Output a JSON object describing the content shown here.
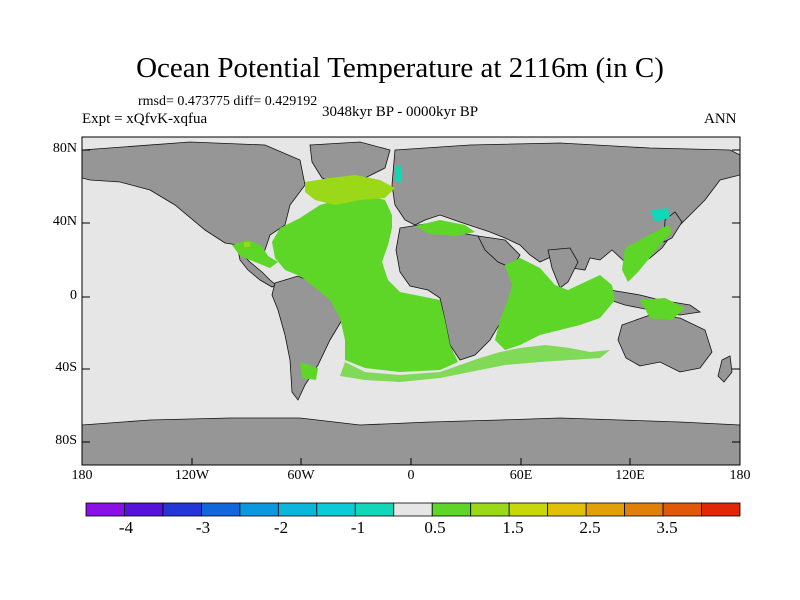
{
  "title": "Ocean Potential Temperature at 2116m (in C)",
  "stats": "rmsd= 0.473775 diff= 0.429192",
  "experiment": "Expt = xQfvK-xqfua",
  "period": "3048kyr BP - 0000kyr BP",
  "season": "ANN",
  "lat_labels": [
    "80N",
    "40N",
    "0",
    "40S",
    "80S"
  ],
  "lon_labels": [
    "180",
    "120W",
    "60W",
    "0",
    "60E",
    "120E",
    "180"
  ],
  "colorbar": {
    "colors": [
      "#8a10e6",
      "#5514d8",
      "#2436d6",
      "#1266dc",
      "#0c98e0",
      "#0ab6dc",
      "#0ccad8",
      "#12d6b8",
      "#e6e6e6",
      "#5ed628",
      "#9ad818",
      "#c8d60c",
      "#e0c008",
      "#e2a008",
      "#e08008",
      "#e05808",
      "#e02808"
    ],
    "labels": [
      "-4",
      "-3",
      "-2",
      "-1",
      "0.5",
      "1.5",
      "2.5",
      "3.5"
    ]
  },
  "colors": {
    "land": "#969696",
    "ocean": "#e6e6e6",
    "anomaly_green": "#5ed628",
    "anomaly_yellowgreen": "#9ad818",
    "anomaly_cyan": "#12d6b8"
  }
}
